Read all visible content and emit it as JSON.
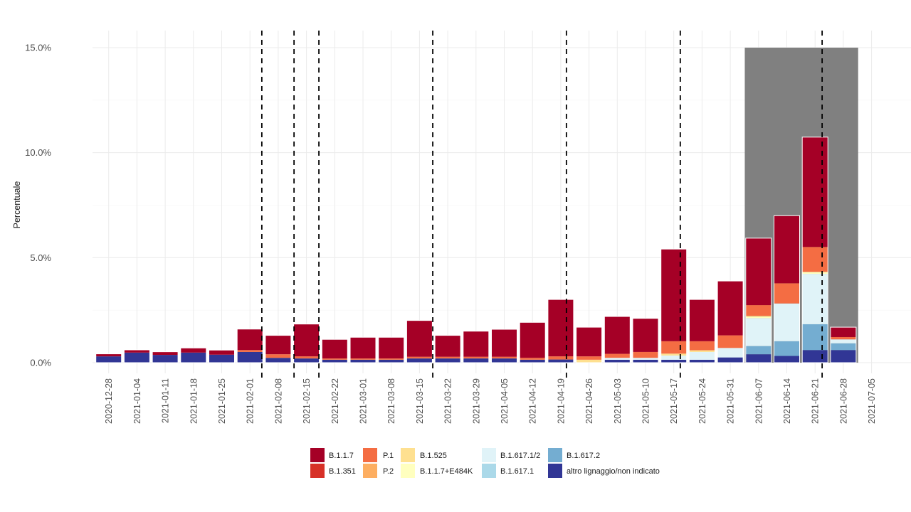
{
  "chart_data": {
    "type": "bar",
    "stacked": true,
    "title": "",
    "xlabel": "",
    "ylabel": "Percentuale",
    "ylim": [
      0,
      15
    ],
    "y_ticks": [
      "0.0%",
      "5.0%",
      "10.0%",
      "15.0%"
    ],
    "y_tick_values": [
      0,
      5,
      10,
      15
    ],
    "grid": true,
    "legend_position": "bottom",
    "categories": [
      "2020-12-28",
      "2021-01-04",
      "2021-01-11",
      "2021-01-18",
      "2021-01-25",
      "2021-02-01",
      "2021-02-08",
      "2021-02-15",
      "2021-02-22",
      "2021-03-01",
      "2021-03-08",
      "2021-03-15",
      "2021-03-22",
      "2021-03-29",
      "2021-04-05",
      "2021-04-12",
      "2021-04-19",
      "2021-04-26",
      "2021-05-03",
      "2021-05-10",
      "2021-05-17",
      "2021-05-24",
      "2021-05-31",
      "2021-06-07",
      "2021-06-14",
      "2021-06-21",
      "2021-06-28"
    ],
    "x_tick_labels": [
      "2020-12-28",
      "2021-01-04",
      "2021-01-11",
      "2021-01-18",
      "2021-01-25",
      "2021-02-01",
      "2021-02-08",
      "2021-02-15",
      "2021-02-22",
      "2021-03-01",
      "2021-03-08",
      "2021-03-15",
      "2021-03-22",
      "2021-03-29",
      "2021-04-05",
      "2021-04-12",
      "2021-04-19",
      "2021-04-26",
      "2021-05-03",
      "2021-05-10",
      "2021-05-17",
      "2021-05-24",
      "2021-05-31",
      "2021-06-07",
      "2021-06-14",
      "2021-06-21",
      "2021-06-28",
      "2021-07-05"
    ],
    "series": [
      {
        "name": "altro lignaggio/non indicato",
        "color": "#313695",
        "values": [
          0.3,
          0.48,
          0.37,
          0.48,
          0.38,
          0.51,
          0.23,
          0.2,
          0.14,
          0.14,
          0.14,
          0.2,
          0.2,
          0.2,
          0.2,
          0.14,
          0.15,
          0,
          0.14,
          0.14,
          0.14,
          0.14,
          0.25,
          0.4,
          0.32,
          0.6,
          0.6
        ]
      },
      {
        "name": "B.1.617.2",
        "color": "#74add1",
        "values": [
          0,
          0,
          0,
          0,
          0,
          0,
          0,
          0,
          0,
          0,
          0,
          0,
          0,
          0,
          0,
          0,
          0,
          0,
          0,
          0,
          0,
          0,
          0,
          0.39,
          0.7,
          1.23,
          0.32
        ]
      },
      {
        "name": "B.1.617.1",
        "color": "#abd9e9",
        "values": [
          0,
          0,
          0,
          0,
          0,
          0,
          0,
          0,
          0,
          0,
          0,
          0,
          0,
          0,
          0,
          0,
          0,
          0,
          0,
          0,
          0,
          0,
          0,
          0,
          0,
          0,
          0
        ]
      },
      {
        "name": "B.1.617.1/2",
        "color": "#e0f3f8",
        "values": [
          0,
          0,
          0,
          0,
          0,
          0,
          0,
          0,
          0,
          0,
          0,
          0,
          0,
          0,
          0,
          0,
          0,
          0,
          0.09,
          0.09,
          0.2,
          0.37,
          0.45,
          1.33,
          1.8,
          2.4,
          0.19
        ]
      },
      {
        "name": "B.1.1.7+E484K",
        "color": "#ffffbf",
        "values": [
          0,
          0,
          0,
          0,
          0,
          0,
          0,
          0,
          0,
          0,
          0,
          0,
          0,
          0,
          0,
          0,
          0,
          0,
          0,
          0,
          0,
          0,
          0,
          0.06,
          0,
          0.09,
          0
        ]
      },
      {
        "name": "B.1.525",
        "color": "#fee090",
        "values": [
          0,
          0,
          0,
          0,
          0,
          0,
          0,
          0,
          0,
          0,
          0,
          0,
          0,
          0,
          0,
          0,
          0,
          0.14,
          0,
          0,
          0.09,
          0.08,
          0,
          0.05,
          0,
          0,
          0
        ]
      },
      {
        "name": "P.2",
        "color": "#fdae61",
        "values": [
          0,
          0,
          0,
          0,
          0,
          0,
          0,
          0,
          0,
          0,
          0,
          0,
          0,
          0,
          0,
          0,
          0,
          0,
          0,
          0,
          0,
          0,
          0,
          0,
          0,
          0,
          0
        ]
      },
      {
        "name": "P.1",
        "color": "#f46d43",
        "values": [
          0,
          0,
          0,
          0,
          0,
          0.09,
          0.17,
          0.1,
          0.06,
          0.06,
          0.06,
          0.08,
          0.08,
          0.08,
          0.08,
          0.09,
          0.15,
          0.16,
          0.19,
          0.28,
          0.59,
          0.43,
          0.6,
          0.51,
          0.96,
          1.19,
          0.11
        ]
      },
      {
        "name": "B.1.351",
        "color": "#d73027",
        "values": [
          0,
          0,
          0,
          0,
          0,
          0,
          0,
          0,
          0,
          0,
          0,
          0,
          0,
          0,
          0,
          0,
          0,
          0,
          0,
          0,
          0,
          0,
          0,
          0,
          0,
          0,
          0
        ]
      },
      {
        "name": "B.1.1.7",
        "color": "#a50026",
        "values": [
          0.12,
          0.13,
          0.15,
          0.22,
          0.22,
          1.0,
          0.9,
          1.54,
          0.91,
          1.01,
          1.01,
          1.73,
          1.02,
          1.22,
          1.31,
          1.69,
          2.71,
          1.39,
          1.78,
          1.6,
          4.39,
          1.99,
          2.59,
          3.19,
          3.22,
          5.23,
          0.47
        ]
      }
    ],
    "legend": [
      {
        "name": "B.1.1.7",
        "color": "#a50026"
      },
      {
        "name": "B.1.351",
        "color": "#d73027"
      },
      {
        "name": "P.1",
        "color": "#f46d43"
      },
      {
        "name": "P.2",
        "color": "#fdae61"
      },
      {
        "name": "B.1.525",
        "color": "#fee090"
      },
      {
        "name": "B.1.1.7+E484K",
        "color": "#ffffbf"
      },
      {
        "name": "B.1.617.1/2",
        "color": "#e0f3f8"
      },
      {
        "name": "B.1.617.1",
        "color": "#abd9e9"
      },
      {
        "name": "B.1.617.2",
        "color": "#74add1"
      },
      {
        "name": "altro lignaggio/non indicato",
        "color": "#313695"
      }
    ],
    "vertical_dashed_lines_at_week_index": [
      5.42,
      6.56,
      7.44,
      11.47,
      16.2,
      20.23,
      25.25
    ],
    "shaded_region": {
      "from_week_index": 23.0,
      "to_week_index": 27.0,
      "ymax": 15,
      "color": "#808080"
    }
  }
}
